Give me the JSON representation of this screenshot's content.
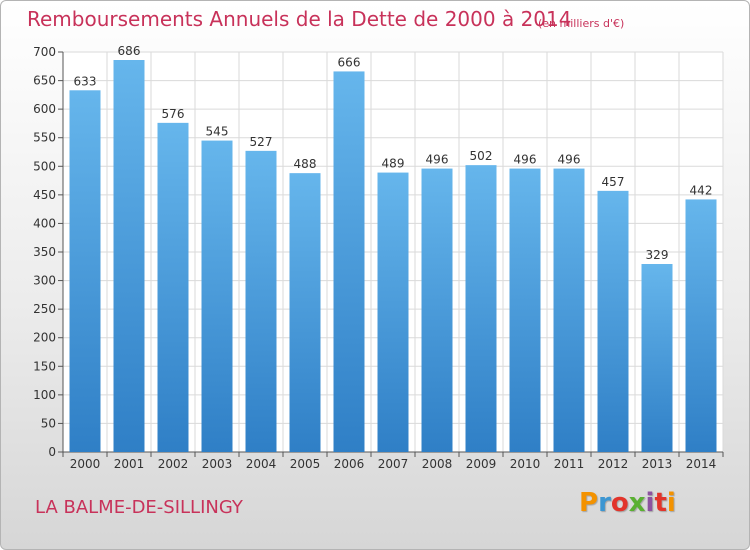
{
  "header": {
    "title": "Remboursements Annuels de la Dette de 2000 à 2014",
    "unit_note": "(en milliers d'€)"
  },
  "footer": {
    "place": "LA BALME-DE-SILLINGY",
    "logo": "Proxiti"
  },
  "colors": {
    "title": "#c8325a",
    "bar_top": "#66b6ec",
    "bar_bottom": "#2f7fc6",
    "grid": "#dadada",
    "logo_letters": [
      "#f39200",
      "#3c96d2",
      "#e2342b",
      "#5ab032",
      "#8c52a0",
      "#e2342b",
      "#f39200"
    ]
  },
  "chart_data": {
    "type": "bar",
    "title": "Remboursements Annuels de la Dette de 2000 à 2014",
    "subtitle": "(en milliers d'€)",
    "xlabel": "",
    "ylabel": "",
    "categories": [
      "2000",
      "2001",
      "2002",
      "2003",
      "2004",
      "2005",
      "2006",
      "2007",
      "2008",
      "2009",
      "2010",
      "2011",
      "2012",
      "2013",
      "2014"
    ],
    "values": [
      633,
      686,
      576,
      545,
      527,
      488,
      666,
      489,
      496,
      502,
      496,
      496,
      457,
      329,
      442
    ],
    "ylim": [
      0,
      700
    ],
    "yticks": [
      0,
      50,
      100,
      150,
      200,
      250,
      300,
      350,
      400,
      450,
      500,
      550,
      600,
      650,
      700
    ],
    "grid": true,
    "legend": "none",
    "data_labels": true
  }
}
